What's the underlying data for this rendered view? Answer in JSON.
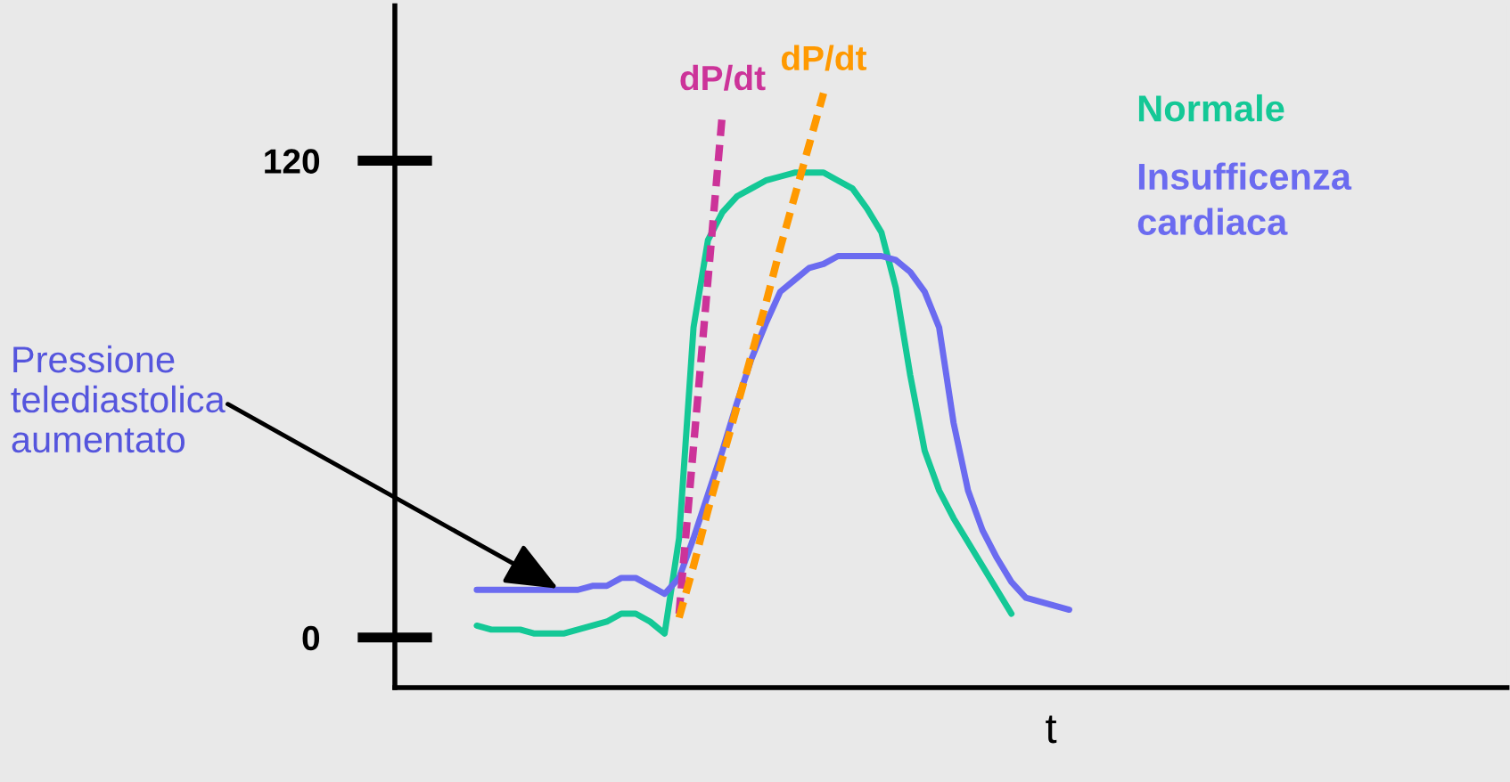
{
  "chart_data": {
    "type": "line",
    "xlabel": "t",
    "categories": [
      null,
      null,
      null,
      null,
      null,
      null,
      null,
      null,
      null,
      null,
      null,
      null,
      null,
      null,
      null,
      null,
      null,
      null,
      null,
      null,
      null,
      null,
      null,
      null,
      null,
      null,
      null,
      null,
      null,
      null,
      null,
      null,
      null,
      null,
      null,
      null,
      null,
      null,
      null,
      null,
      null,
      null
    ],
    "series": [
      {
        "name": "Normale",
        "color": "#14c896",
        "line_style": "solid",
        "values": [
          3,
          2,
          2,
          2,
          1,
          1,
          1,
          2,
          3,
          4,
          6,
          6,
          4,
          1,
          25,
          78,
          100,
          107,
          111,
          113,
          115,
          116,
          117,
          117,
          117,
          115,
          113,
          108,
          102,
          88,
          66,
          47,
          37,
          30,
          24,
          18,
          12,
          6,
          null,
          null,
          null,
          null
        ]
      },
      {
        "name": "Insufficenza cardiaca",
        "color": "#6b6bf0",
        "line_style": "solid",
        "values": [
          12,
          12,
          12,
          12,
          12,
          12,
          12,
          12,
          13,
          13,
          15,
          15,
          13,
          11,
          15,
          25,
          36,
          47,
          59,
          70,
          79,
          87,
          90,
          93,
          94,
          96,
          96,
          96,
          96,
          95,
          92,
          87,
          78,
          54,
          37,
          27,
          20,
          14,
          10,
          9,
          8,
          7
        ]
      },
      {
        "name": "dP/dt",
        "color": "#cc3399",
        "line_style": "dashed",
        "values": [
          null,
          null,
          null,
          null,
          null,
          null,
          null,
          null,
          null,
          null,
          null,
          null,
          null,
          null,
          6,
          48,
          90,
          132,
          null,
          null,
          null,
          null,
          null,
          null,
          null,
          null,
          null,
          null,
          null,
          null,
          null,
          null,
          null,
          null,
          null,
          null,
          null,
          null,
          null,
          null,
          null,
          null
        ]
      },
      {
        "name": "dP/dt",
        "color": "#ff9900",
        "line_style": "dashed",
        "values": [
          null,
          null,
          null,
          null,
          null,
          null,
          null,
          null,
          null,
          null,
          null,
          null,
          null,
          null,
          5,
          18,
          32,
          45,
          58,
          71,
          84,
          98,
          111,
          124,
          137,
          null,
          null,
          null,
          null,
          null,
          null,
          null,
          null,
          null,
          null,
          null,
          null,
          null,
          null,
          null,
          null,
          null
        ]
      }
    ],
    "ylim": [
      -12.6,
      159
    ],
    "yticks": [
      0,
      120
    ],
    "tick_labels": "y",
    "grid": false,
    "marker": "none",
    "annotations": [
      "Pressione\ntelediastolica\naumentato"
    ]
  }
}
